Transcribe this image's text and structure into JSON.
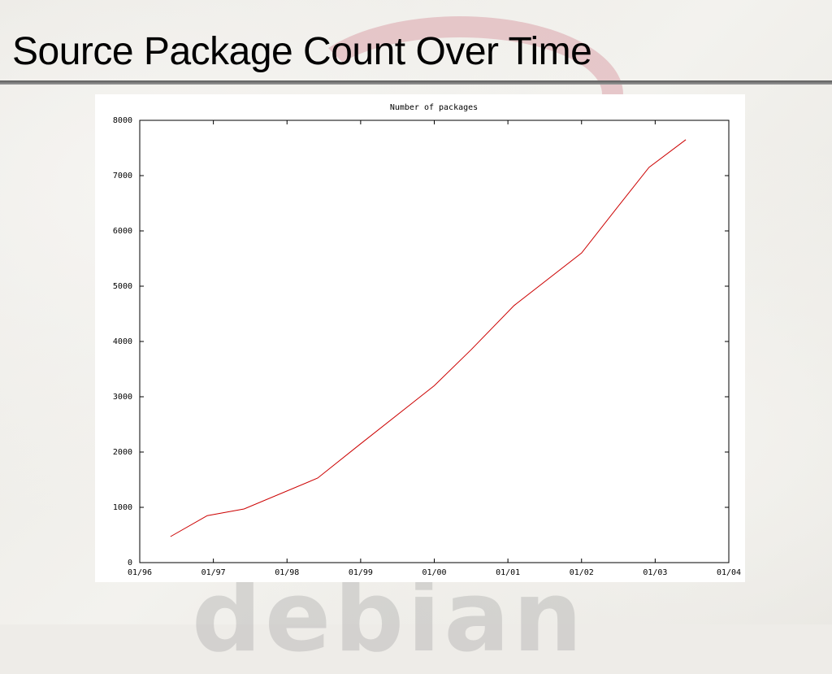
{
  "slide": {
    "title": "Source Package Count Over Time"
  },
  "colors": {
    "series_line": "#cc0000",
    "background": "#eeece8",
    "rule": "#6e6e6e"
  },
  "chart_data": {
    "type": "line",
    "title": "Number of packages",
    "xlabel": "",
    "ylabel": "",
    "x_ticks": [
      "01/96",
      "01/97",
      "01/98",
      "01/99",
      "01/00",
      "01/01",
      "01/02",
      "01/03",
      "01/04"
    ],
    "y_ticks": [
      0,
      1000,
      2000,
      3000,
      4000,
      5000,
      6000,
      7000,
      8000
    ],
    "xlim": [
      "1996-01",
      "2004-01"
    ],
    "ylim": [
      0,
      8000
    ],
    "grid": false,
    "series": [
      {
        "values": [
          {
            "x": "1996-06",
            "y": 470
          },
          {
            "x": "1996-12",
            "y": 850
          },
          {
            "x": "1997-06",
            "y": 970
          },
          {
            "x": "1998-06",
            "y": 1530
          },
          {
            "x": "1999-01",
            "y": 2150
          },
          {
            "x": "2000-01",
            "y": 3200
          },
          {
            "x": "2000-07",
            "y": 3850
          },
          {
            "x": "2001-02",
            "y": 4650
          },
          {
            "x": "2002-01",
            "y": 5600
          },
          {
            "x": "2002-07",
            "y": 6450
          },
          {
            "x": "2002-12",
            "y": 7150
          },
          {
            "x": "2003-06",
            "y": 7650
          }
        ]
      }
    ]
  }
}
